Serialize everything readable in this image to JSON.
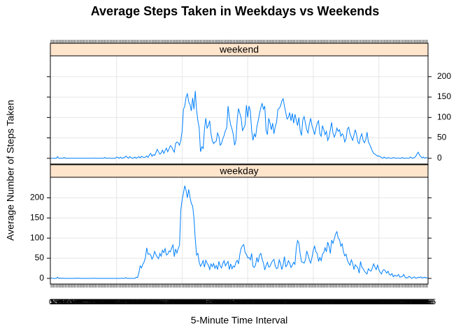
{
  "chart_data": {
    "type": "line",
    "title": "Average Steps Taken in Weekdays vs Weekends",
    "x_label": "5-Minute Time Interval",
    "y_label": "Average Number of Steps Taken",
    "categories": [
      0,
      5,
      10,
      15,
      20,
      25,
      30,
      35,
      40,
      45,
      50,
      55,
      100,
      105,
      110,
      115,
      120,
      125,
      130,
      135,
      140,
      145,
      150,
      155,
      200,
      205,
      210,
      215,
      220,
      225,
      230,
      235,
      240,
      245,
      250,
      255,
      300,
      305,
      310,
      315,
      320,
      325,
      330,
      335,
      340,
      345,
      350,
      355,
      400,
      405,
      410,
      415,
      420,
      425,
      430,
      435,
      440,
      445,
      450,
      455,
      500,
      505,
      510,
      515,
      520,
      525,
      530,
      535,
      540,
      545,
      550,
      555,
      600,
      605,
      610,
      615,
      620,
      625,
      630,
      635,
      640,
      645,
      650,
      655,
      700,
      705,
      710,
      715,
      720,
      725,
      730,
      735,
      740,
      745,
      750,
      755,
      800,
      805,
      810,
      815,
      820,
      825,
      830,
      835,
      840,
      845,
      850,
      855,
      900,
      905,
      910,
      915,
      920,
      925,
      930,
      935,
      940,
      945,
      950,
      955,
      1000,
      1005,
      1010,
      1015,
      1020,
      1025,
      1030,
      1035,
      1040,
      1045,
      1050,
      1055,
      1100,
      1105,
      1110,
      1115,
      1120,
      1125,
      1130,
      1135,
      1140,
      1145,
      1150,
      1155,
      1200,
      1205,
      1210,
      1215,
      1220,
      1225,
      1230,
      1235,
      1240,
      1245,
      1250,
      1255,
      1300,
      1305,
      1310,
      1315,
      1320,
      1325,
      1330,
      1335,
      1340,
      1345,
      1350,
      1355,
      1400,
      1405,
      1410,
      1415,
      1420,
      1425,
      1430,
      1435,
      1440,
      1445,
      1450,
      1455,
      1500,
      1505,
      1510,
      1515,
      1520,
      1525,
      1530,
      1535,
      1540,
      1545,
      1550,
      1555,
      1600,
      1605,
      1610,
      1615,
      1620,
      1625,
      1630,
      1635,
      1640,
      1645,
      1650,
      1655,
      1700,
      1705,
      1710,
      1715,
      1720,
      1725,
      1730,
      1735,
      1740,
      1745,
      1750,
      1755,
      1800,
      1805,
      1810,
      1815,
      1820,
      1825,
      1830,
      1835,
      1840,
      1845,
      1850,
      1855,
      1900,
      1905,
      1910,
      1915,
      1920,
      1925,
      1930,
      1935,
      1940,
      1945,
      1950,
      1955,
      2000,
      2005,
      2010,
      2015,
      2020,
      2025,
      2030,
      2035,
      2040,
      2045,
      2050,
      2055,
      2100,
      2105,
      2110,
      2115,
      2120,
      2125,
      2130,
      2135,
      2140,
      2145,
      2150,
      2155,
      2200,
      2205,
      2210,
      2215,
      2220,
      2225,
      2230,
      2235,
      2240,
      2245,
      2250,
      2255,
      2300,
      2305,
      2310,
      2315,
      2320,
      2325,
      2330,
      2335,
      2340,
      2345,
      2350,
      2355
    ],
    "series": [
      {
        "name": "weekend",
        "color": "#0080ff",
        "values": [
          0,
          0,
          0,
          0,
          0,
          4,
          0,
          0,
          0,
          0,
          2,
          0,
          0,
          0,
          0,
          0,
          0,
          0,
          0,
          0,
          0,
          0,
          0,
          0,
          0,
          0,
          0,
          0,
          0,
          0,
          0,
          0,
          0,
          1,
          0,
          0,
          0,
          0,
          0,
          0,
          0,
          2,
          0,
          0,
          1,
          0,
          0,
          0,
          0,
          0,
          3,
          2,
          0,
          3,
          0,
          1,
          2,
          5,
          3,
          0,
          4,
          2,
          0,
          1,
          3,
          0,
          2,
          4,
          1,
          5,
          3,
          2,
          3,
          6,
          2,
          8,
          12,
          5,
          9,
          7,
          14,
          22,
          16,
          10,
          13,
          20,
          12,
          19,
          25,
          16,
          23,
          31,
          28,
          21,
          15,
          36,
          40,
          38,
          32,
          44,
          67,
          120,
          128,
          150,
          158,
          138,
          132,
          116,
          148,
          120,
          165,
          118,
          92,
          74,
          16,
          28,
          24,
          70,
          98,
          74,
          80,
          92,
          60,
          43,
          36,
          40,
          42,
          62,
          54,
          32,
          36,
          48,
          56,
          68,
          74,
          128,
          100,
          82,
          72,
          58,
          32,
          44,
          96,
          122,
          110,
          98,
          68,
          74,
          82,
          130,
          100,
          128,
          116,
          68,
          44,
          60,
          52,
          78,
          92,
          110,
          124,
          134,
          120,
          128,
          68,
          58,
          98,
          86,
          70,
          86,
          60,
          78,
          88,
          120,
          122,
          128,
          140,
          146,
          128,
          112,
          96,
          100,
          112,
          92,
          110,
          86,
          108,
          94,
          80,
          100,
          68,
          56,
          94,
          102,
          86,
          70,
          62,
          84,
          98,
          80,
          70,
          58,
          74,
          86,
          92,
          60,
          54,
          80,
          70,
          58,
          66,
          44,
          52,
          70,
          88,
          62,
          52,
          60,
          74,
          66,
          70,
          54,
          60,
          56,
          40,
          48,
          72,
          76,
          60,
          52,
          44,
          56,
          70,
          58,
          40,
          36,
          52,
          60,
          44,
          38,
          46,
          64,
          40,
          34,
          26,
          18,
          12,
          10,
          8,
          5,
          6,
          4,
          2,
          0,
          3,
          1,
          0,
          2,
          1,
          0,
          0,
          2,
          1,
          0,
          0,
          1,
          0,
          0,
          2,
          0,
          0,
          1,
          0,
          0,
          3,
          1,
          0,
          2,
          4,
          10,
          15,
          8,
          4,
          1,
          3,
          0,
          2,
          1
        ]
      },
      {
        "name": "weekday",
        "color": "#0080ff",
        "values": [
          2,
          0,
          0,
          0,
          0,
          3,
          0,
          1,
          0,
          1,
          0,
          0,
          0,
          0,
          0,
          0,
          0,
          0,
          0,
          1,
          0,
          1,
          0,
          0,
          0,
          0,
          0,
          0,
          0,
          0,
          0,
          0,
          0,
          1,
          0,
          0,
          0,
          0,
          0,
          0,
          0,
          0,
          0,
          0,
          0,
          0,
          0,
          0,
          0,
          0,
          0,
          0,
          0,
          0,
          1,
          0,
          0,
          2,
          0,
          0,
          0,
          0,
          0,
          0,
          0,
          3,
          2,
          14,
          31,
          26,
          35,
          41,
          52,
          76,
          60,
          61,
          58,
          48,
          54,
          67,
          59,
          53,
          49,
          62,
          55,
          70,
          64,
          74,
          58,
          60,
          68,
          66,
          76,
          83,
          54,
          73,
          63,
          74,
          82,
          170,
          196,
          212,
          230,
          218,
          200,
          221,
          201,
          186,
          180,
          150,
          98,
          58,
          62,
          40,
          30,
          36,
          44,
          28,
          45,
          38,
          33,
          22,
          36,
          29,
          37,
          25,
          32,
          22,
          42,
          31,
          26,
          37,
          44,
          31,
          37,
          42,
          22,
          36,
          24,
          31,
          28,
          40,
          45,
          36,
          60,
          75,
          81,
          84,
          64,
          60,
          51,
          52,
          46,
          62,
          30,
          27,
          34,
          52,
          40,
          58,
          62,
          48,
          38,
          21,
          32,
          40,
          28,
          30,
          38,
          44,
          47,
          31,
          24,
          27,
          46,
          37,
          22,
          34,
          54,
          29,
          33,
          44,
          38,
          27,
          33,
          40,
          35,
          74,
          94,
          88,
          61,
          41,
          40,
          38,
          46,
          68,
          58,
          46,
          38,
          52,
          70,
          80,
          66,
          62,
          42,
          52,
          44,
          60,
          64,
          76,
          66,
          90,
          80,
          62,
          95,
          87,
          98,
          110,
          116,
          100,
          96,
          80,
          86,
          66,
          56,
          60,
          45,
          38,
          33,
          46,
          38,
          22,
          34,
          30,
          26,
          13,
          42,
          28,
          24,
          18,
          14,
          11,
          24,
          20,
          18,
          26,
          36,
          28,
          22,
          33,
          22,
          15,
          11,
          20,
          22,
          18,
          13,
          18,
          10,
          8,
          12,
          4,
          8,
          6,
          6,
          10,
          3,
          4,
          5,
          10,
          3,
          1,
          2,
          5,
          3,
          0,
          2,
          4,
          1,
          1,
          3,
          2,
          4,
          1,
          2,
          3,
          1,
          2
        ]
      }
    ],
    "strip_color": "#ffe5cc",
    "ylim": [
      -14,
      251
    ],
    "yticks": [
      0,
      50,
      100,
      150,
      200
    ],
    "grid": true
  }
}
